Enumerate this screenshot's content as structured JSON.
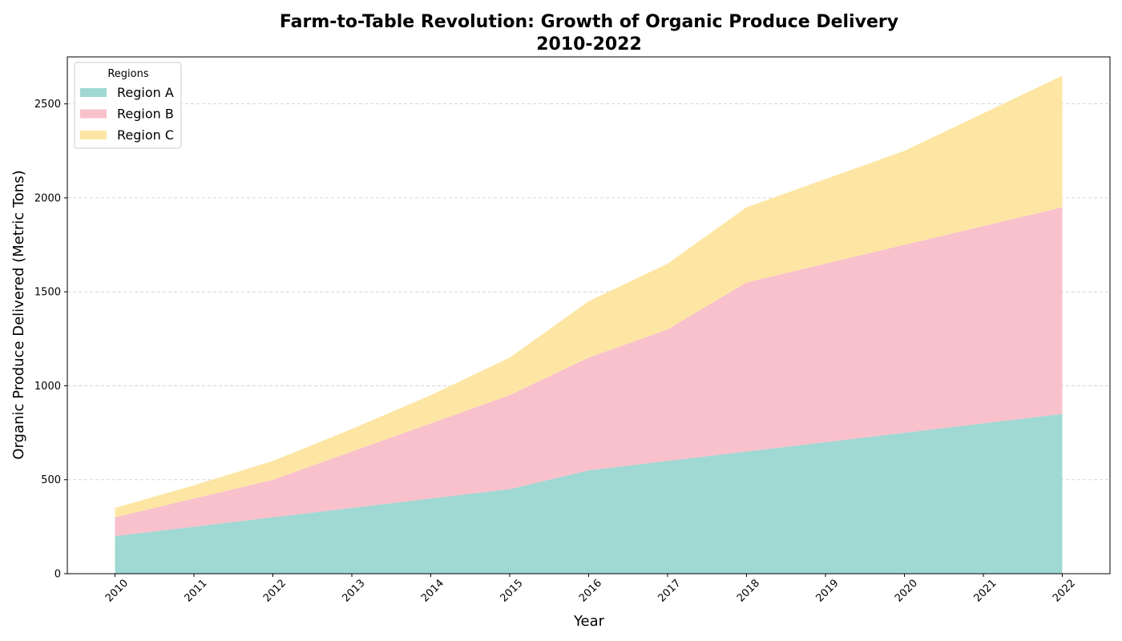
{
  "chart_data": {
    "type": "area",
    "stacked": true,
    "title": "Farm-to-Table Revolution: Growth of Organic Produce Delivery",
    "subtitle": "2010-2022",
    "xlabel": "Year",
    "ylabel": "Organic Produce Delivered (Metric Tons)",
    "x": [
      "2010",
      "2011",
      "2012",
      "2013",
      "2014",
      "2015",
      "2016",
      "2017",
      "2018",
      "2019",
      "2020",
      "2021",
      "2022"
    ],
    "ylim": [
      0,
      2750
    ],
    "yticks": [
      0,
      500,
      1000,
      1500,
      2000,
      2500
    ],
    "grid": "y-dashed",
    "legend": {
      "title": "Regions",
      "position": "top-left"
    },
    "series": [
      {
        "name": "Region A",
        "color": "#a0d8d3",
        "values": [
          200,
          250,
          300,
          350,
          400,
          450,
          550,
          600,
          650,
          700,
          750,
          800,
          850
        ]
      },
      {
        "name": "Region B",
        "color": "#f8c1cc",
        "values": [
          100,
          150,
          200,
          300,
          400,
          500,
          600,
          700,
          900,
          950,
          1000,
          1050,
          1100
        ]
      },
      {
        "name": "Region C",
        "color": "#fde6a4",
        "values": [
          50,
          70,
          100,
          120,
          150,
          200,
          300,
          350,
          400,
          450,
          500,
          600,
          700
        ]
      }
    ]
  }
}
